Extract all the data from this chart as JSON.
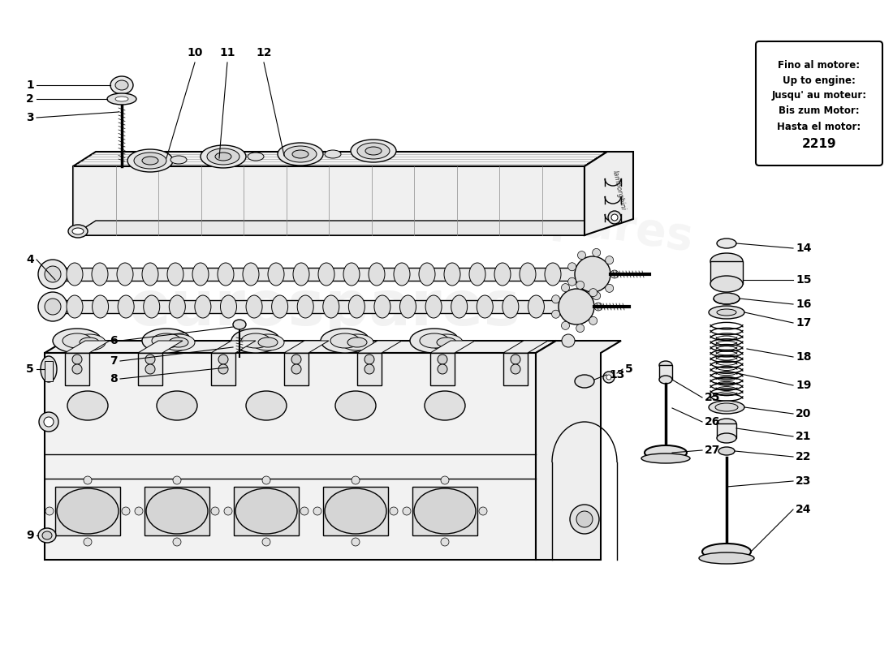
{
  "background_color": "#ffffff",
  "line_color": "#000000",
  "box_text_lines": [
    "Fino al motore:",
    "Up to engine:",
    "Jusqu' au moteur:",
    "Bis zum Motor:",
    "Hasta el motor:",
    "2219"
  ],
  "watermark_text": "eurospares",
  "label_fontsize": 10,
  "fig_w": 11.0,
  "fig_h": 8.0,
  "dpi": 100
}
